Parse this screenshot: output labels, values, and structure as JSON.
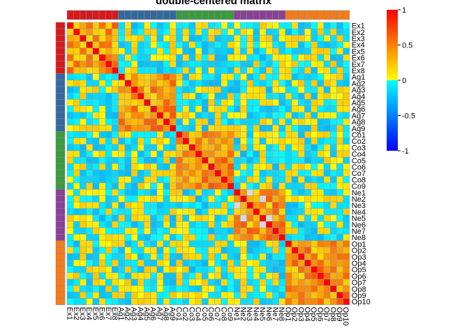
{
  "chart_data": {
    "type": "heatmap",
    "title": "double-centered matrix",
    "labels": [
      "Ex1",
      "Ex2",
      "Ex3",
      "Ex4",
      "Ex5",
      "Ex6",
      "Ex7",
      "Ex8",
      "Ag1",
      "Ag2",
      "Ag3",
      "Ag4",
      "Ag5",
      "Ag6",
      "Ag7",
      "Ag8",
      "Ag9",
      "Co1",
      "Co2",
      "Co3",
      "Co4",
      "Co5",
      "Co6",
      "Co7",
      "Co8",
      "Co9",
      "Ne1",
      "Ne2",
      "Ne3",
      "Ne4",
      "Ne5",
      "Ne6",
      "Ne7",
      "Ne8",
      "Op1",
      "Op2",
      "Op3",
      "Op4",
      "Op5",
      "Op6",
      "Op7",
      "Op8",
      "Op9",
      "Op10"
    ],
    "groups": [
      {
        "prefix": "Ex",
        "count": 8,
        "color": "#d7191c"
      },
      {
        "prefix": "Ag",
        "count": 9,
        "color": "#33699e"
      },
      {
        "prefix": "Co",
        "count": 9,
        "color": "#3a9b3e"
      },
      {
        "prefix": "Ne",
        "count": 8,
        "color": "#8a4197"
      },
      {
        "prefix": "Op",
        "count": 10,
        "color": "#f47c1b"
      }
    ],
    "colorbar": {
      "min": -1,
      "max": 1,
      "ticks": [
        1,
        0.5,
        0,
        -0.5,
        -1
      ],
      "tick_labels": [
        "1",
        "0.5",
        "0",
        "-0.5",
        "-1"
      ]
    },
    "colorscale": [
      "#0000ff",
      "#00ffff",
      "#ffff00",
      "#ff0000"
    ],
    "diagonal_color": "#ff0000",
    "missing_color": "#d9d9d9",
    "values_note": "cell values are approximate visual estimates"
  }
}
